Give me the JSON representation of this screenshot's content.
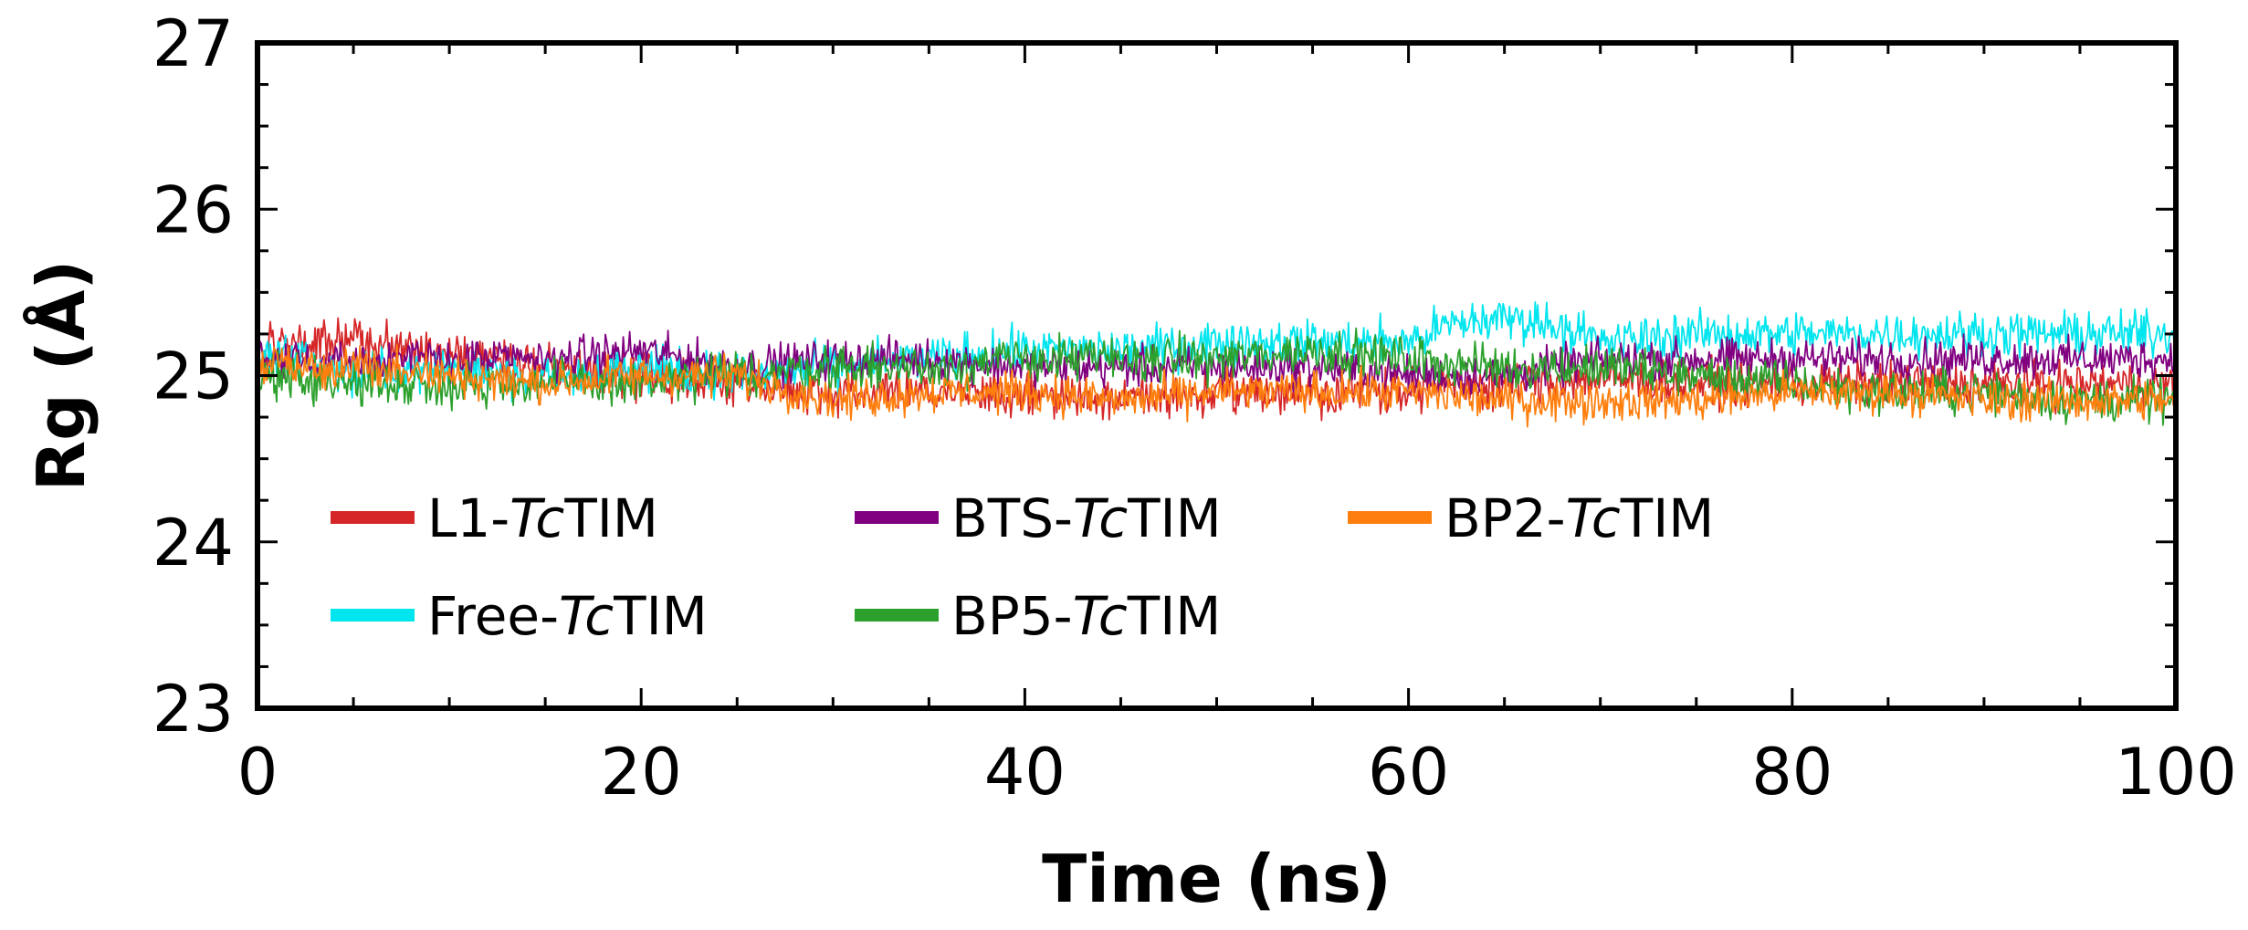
{
  "chart_data": {
    "type": "line",
    "title": "",
    "xlabel": "Time (ns)",
    "ylabel": "Rg (Å)",
    "xlim": [
      0,
      100
    ],
    "ylim": [
      23,
      27
    ],
    "x_ticks": [
      0,
      20,
      40,
      60,
      80,
      100
    ],
    "y_ticks": [
      23,
      24,
      25,
      26,
      27
    ],
    "x_tick_labels": [
      "0",
      "20",
      "40",
      "60",
      "80",
      "100"
    ],
    "y_tick_labels": [
      "23",
      "24",
      "25",
      "26",
      "27"
    ],
    "legend_position": "lower-left",
    "grid": false,
    "series": [
      {
        "name": "L1-TcTIM",
        "prefix": "L1-",
        "italic": "Tc",
        "suffix": "TIM",
        "color": "#d62728",
        "noise": 0.1,
        "x": [
          0,
          5,
          10,
          15,
          20,
          25,
          30,
          35,
          40,
          45,
          50,
          55,
          60,
          65,
          70,
          75,
          80,
          85,
          90,
          95,
          100
        ],
        "values": [
          25.15,
          25.2,
          25.15,
          25.05,
          25.0,
          24.95,
          24.9,
          24.9,
          24.88,
          24.85,
          24.9,
          24.9,
          24.92,
          24.95,
          24.98,
          24.95,
          24.95,
          24.95,
          24.95,
          24.95,
          24.95
        ]
      },
      {
        "name": "Free-TcTIM",
        "prefix": "Free-",
        "italic": "Tc",
        "suffix": "TIM",
        "color": "#00e5ee",
        "noise": 0.1,
        "x": [
          0,
          5,
          10,
          15,
          20,
          25,
          30,
          35,
          40,
          45,
          50,
          55,
          60,
          62,
          65,
          68,
          70,
          75,
          80,
          85,
          90,
          95,
          100
        ],
        "values": [
          25.15,
          25.0,
          25.05,
          25.0,
          25.05,
          25.0,
          25.05,
          25.1,
          25.15,
          25.15,
          25.2,
          25.2,
          25.2,
          25.3,
          25.35,
          25.3,
          25.2,
          25.25,
          25.25,
          25.25,
          25.25,
          25.25,
          25.25
        ]
      },
      {
        "name": "BTS-TcTIM",
        "prefix": "BTS-",
        "italic": "Tc",
        "suffix": "TIM",
        "color": "#800080",
        "noise": 0.09,
        "x": [
          0,
          5,
          10,
          15,
          20,
          25,
          30,
          35,
          40,
          45,
          50,
          55,
          60,
          65,
          70,
          75,
          80,
          85,
          90,
          95,
          100
        ],
        "values": [
          25.1,
          25.1,
          25.1,
          25.1,
          25.15,
          25.05,
          25.1,
          25.1,
          25.05,
          25.05,
          25.05,
          25.05,
          25.0,
          25.0,
          25.1,
          25.1,
          25.1,
          25.1,
          25.1,
          25.1,
          25.1
        ]
      },
      {
        "name": "BP5-TcTIM",
        "prefix": "BP5-",
        "italic": "Tc",
        "suffix": "TIM",
        "color": "#2ca02c",
        "noise": 0.1,
        "x": [
          0,
          5,
          10,
          15,
          20,
          25,
          30,
          35,
          40,
          45,
          50,
          55,
          60,
          65,
          70,
          75,
          80,
          85,
          90,
          95,
          100
        ],
        "values": [
          25.0,
          24.95,
          24.95,
          24.95,
          24.95,
          25.0,
          25.05,
          25.05,
          25.1,
          25.1,
          25.1,
          25.15,
          25.1,
          25.05,
          25.05,
          25.0,
          24.95,
          24.9,
          24.9,
          24.85,
          24.85
        ]
      },
      {
        "name": "BP2-TcTIM",
        "prefix": "BP2-",
        "italic": "Tc",
        "suffix": "TIM",
        "color": "#ff7f0e",
        "noise": 0.09,
        "x": [
          0,
          5,
          10,
          15,
          20,
          25,
          30,
          35,
          40,
          45,
          50,
          55,
          60,
          65,
          70,
          75,
          80,
          85,
          90,
          95,
          100
        ],
        "values": [
          25.05,
          25.05,
          25.0,
          24.95,
          25.0,
          25.0,
          24.85,
          24.9,
          24.9,
          24.85,
          24.9,
          24.9,
          24.9,
          24.85,
          24.85,
          24.85,
          24.9,
          24.9,
          24.85,
          24.85,
          24.85
        ]
      }
    ]
  }
}
